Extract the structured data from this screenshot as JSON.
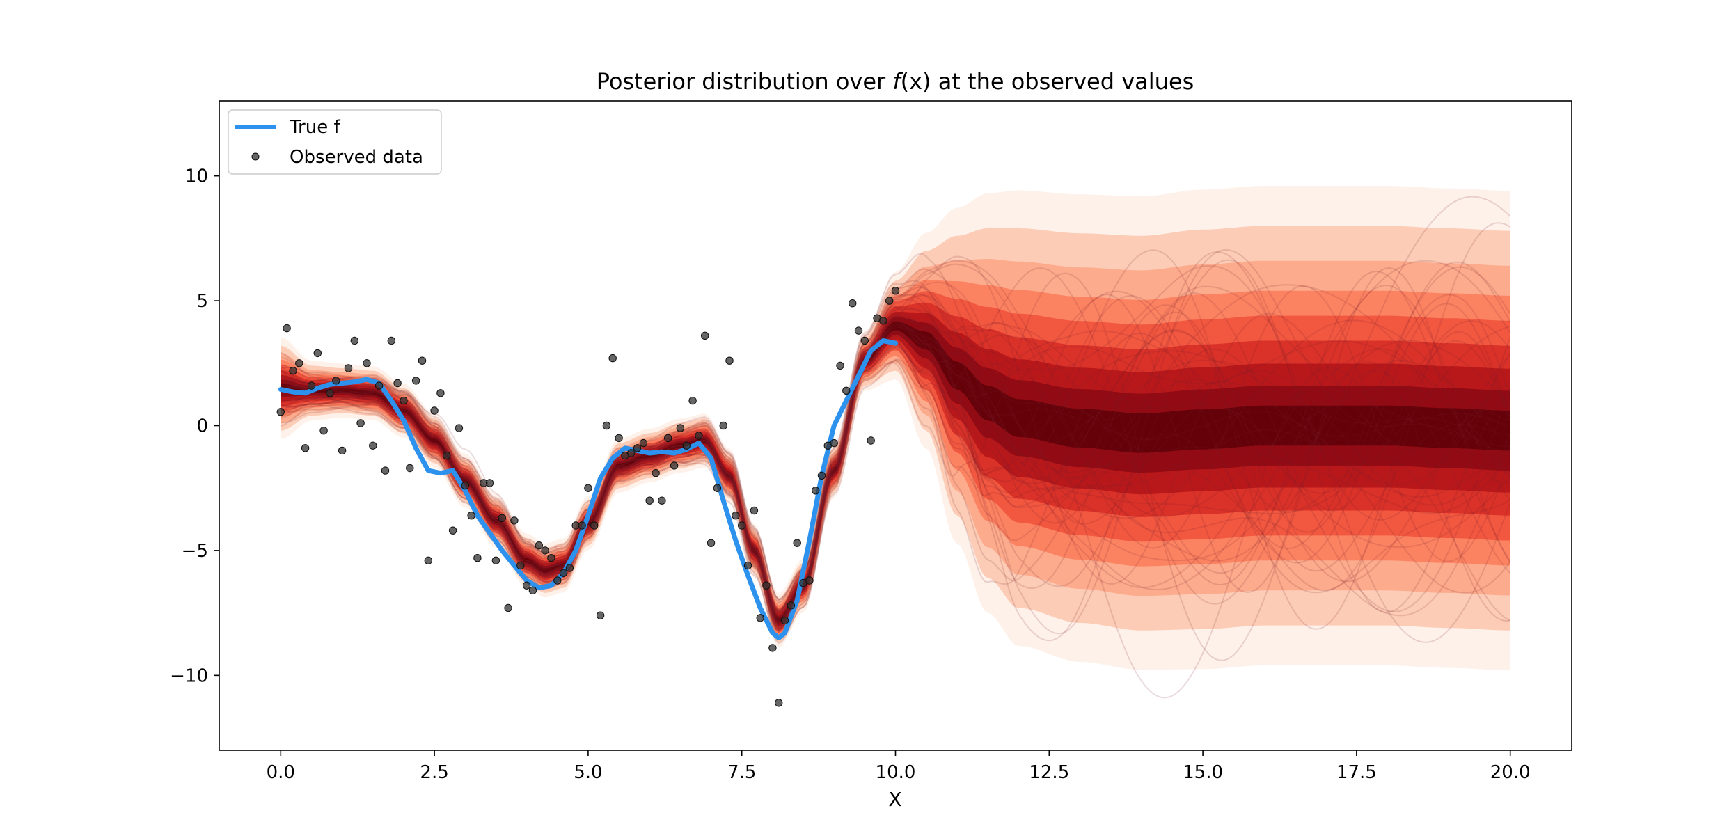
{
  "chart_data": {
    "type": "line",
    "title_prefix": "Posterior distribution over ",
    "title_math": "f",
    "title_arg": "(x)",
    "title_suffix": " at the observed values",
    "xlabel": "X",
    "ylabel": "",
    "xlim": [
      -1,
      21
    ],
    "ylim": [
      -13,
      13
    ],
    "x_ticks": [
      0.0,
      2.5,
      5.0,
      7.5,
      10.0,
      12.5,
      15.0,
      17.5,
      20.0
    ],
    "x_tick_labels": [
      "0.0",
      "2.5",
      "5.0",
      "7.5",
      "10.0",
      "12.5",
      "15.0",
      "17.5",
      "20.0"
    ],
    "y_ticks": [
      -10,
      -5,
      0,
      5,
      10
    ],
    "y_tick_labels": [
      "−10",
      "−5",
      "0",
      "5",
      "10"
    ],
    "grid": false,
    "legend_position": "top-left",
    "legend": [
      {
        "label": "True f",
        "kind": "line",
        "color": "#2d91ee"
      },
      {
        "label": "Observed data",
        "kind": "marker",
        "color": "#333333"
      }
    ],
    "posterior": {
      "color_dark": "#67000d",
      "color_light": "#fee0d2",
      "x": [
        0,
        0.5,
        1,
        1.5,
        2,
        2.5,
        3,
        3.5,
        4,
        4.3,
        4.6,
        5,
        5.5,
        6,
        6.5,
        6.9,
        7.3,
        7.7,
        8.1,
        8.5,
        9,
        9.5,
        10,
        10.5,
        11,
        11.5,
        12,
        13,
        14,
        15,
        16,
        17,
        18,
        19,
        20
      ],
      "mean": [
        1.5,
        1.4,
        1.4,
        1.3,
        0.6,
        -0.6,
        -2.2,
        -3.8,
        -5.4,
        -5.8,
        -5.6,
        -3.9,
        -1.6,
        -1.2,
        -0.8,
        -0.6,
        -2.0,
        -5.0,
        -7.8,
        -6.4,
        -1.8,
        2.6,
        4.0,
        3.4,
        2.0,
        0.9,
        0.3,
        -0.1,
        -0.3,
        -0.15,
        0.0,
        0.0,
        0.0,
        -0.1,
        -0.2
      ],
      "sd": [
        0.85,
        0.5,
        0.45,
        0.45,
        0.45,
        0.45,
        0.45,
        0.45,
        0.45,
        0.45,
        0.45,
        0.45,
        0.45,
        0.45,
        0.45,
        0.45,
        0.45,
        0.45,
        0.45,
        0.45,
        0.45,
        0.5,
        0.9,
        1.8,
        2.8,
        3.5,
        3.8,
        3.9,
        3.95,
        4.0,
        4.0,
        4.0,
        4.0,
        4.0,
        4.0
      ],
      "sample_count": 45
    },
    "series": [
      {
        "name": "True f",
        "color": "#2d91ee",
        "x": [
          0,
          0.2,
          0.4,
          0.6,
          0.8,
          1.0,
          1.2,
          1.4,
          1.6,
          1.8,
          2.0,
          2.2,
          2.4,
          2.6,
          2.8,
          3.0,
          3.2,
          3.4,
          3.6,
          3.8,
          4.0,
          4.2,
          4.4,
          4.6,
          4.8,
          5.0,
          5.2,
          5.4,
          5.6,
          5.8,
          6.0,
          6.2,
          6.4,
          6.6,
          6.8,
          7.0,
          7.2,
          7.4,
          7.6,
          7.8,
          8.0,
          8.1,
          8.2,
          8.4,
          8.6,
          8.8,
          9.0,
          9.2,
          9.4,
          9.6,
          9.8,
          10.0
        ],
        "y": [
          1.45,
          1.35,
          1.3,
          1.5,
          1.65,
          1.7,
          1.75,
          1.85,
          1.7,
          1.0,
          0.2,
          -0.9,
          -1.8,
          -1.9,
          -1.8,
          -2.6,
          -3.6,
          -4.3,
          -5.0,
          -5.6,
          -6.2,
          -6.5,
          -6.4,
          -5.9,
          -5.0,
          -3.6,
          -2.1,
          -1.3,
          -0.9,
          -1.0,
          -1.1,
          -1.05,
          -1.1,
          -0.95,
          -0.7,
          -1.3,
          -3.0,
          -4.6,
          -6.0,
          -7.3,
          -8.3,
          -8.5,
          -8.3,
          -7.0,
          -4.6,
          -2.0,
          0.0,
          1.0,
          2.0,
          3.0,
          3.4,
          3.3
        ]
      }
    ],
    "observed": {
      "name": "Observed data",
      "color": "#333333",
      "points": [
        [
          0.0,
          0.55
        ],
        [
          0.1,
          3.9
        ],
        [
          0.2,
          2.2
        ],
        [
          0.3,
          2.5
        ],
        [
          0.4,
          -0.9
        ],
        [
          0.5,
          1.6
        ],
        [
          0.6,
          2.9
        ],
        [
          0.7,
          -0.2
        ],
        [
          0.8,
          1.3
        ],
        [
          0.9,
          1.8
        ],
        [
          1.0,
          -1.0
        ],
        [
          1.1,
          2.3
        ],
        [
          1.2,
          3.4
        ],
        [
          1.3,
          0.1
        ],
        [
          1.4,
          2.5
        ],
        [
          1.5,
          -0.8
        ],
        [
          1.6,
          1.6
        ],
        [
          1.7,
          -1.8
        ],
        [
          1.8,
          3.4
        ],
        [
          1.9,
          1.7
        ],
        [
          2.0,
          1.0
        ],
        [
          2.1,
          -1.7
        ],
        [
          2.2,
          1.8
        ],
        [
          2.3,
          2.6
        ],
        [
          2.4,
          -5.4
        ],
        [
          2.5,
          0.6
        ],
        [
          2.6,
          1.3
        ],
        [
          2.7,
          -1.2
        ],
        [
          2.8,
          -4.2
        ],
        [
          2.9,
          -0.1
        ],
        [
          3.0,
          -2.4
        ],
        [
          3.1,
          -3.6
        ],
        [
          3.2,
          -5.3
        ],
        [
          3.3,
          -2.3
        ],
        [
          3.4,
          -2.3
        ],
        [
          3.5,
          -5.4
        ],
        [
          3.6,
          -3.7
        ],
        [
          3.7,
          -7.3
        ],
        [
          3.8,
          -3.8
        ],
        [
          3.9,
          -5.6
        ],
        [
          4.0,
          -6.4
        ],
        [
          4.1,
          -6.6
        ],
        [
          4.2,
          -4.8
        ],
        [
          4.3,
          -5.0
        ],
        [
          4.4,
          -5.3
        ],
        [
          4.5,
          -6.2
        ],
        [
          4.6,
          -5.9
        ],
        [
          4.7,
          -5.7
        ],
        [
          4.8,
          -4.0
        ],
        [
          4.9,
          -4.0
        ],
        [
          5.0,
          -2.5
        ],
        [
          5.1,
          -4.0
        ],
        [
          5.2,
          -7.6
        ],
        [
          5.3,
          -0.0
        ],
        [
          5.4,
          2.7
        ],
        [
          5.5,
          -0.5
        ],
        [
          5.6,
          -1.2
        ],
        [
          5.7,
          -1.1
        ],
        [
          5.8,
          -0.9
        ],
        [
          5.9,
          -0.7
        ],
        [
          6.0,
          -3.0
        ],
        [
          6.1,
          -1.9
        ],
        [
          6.2,
          -3.0
        ],
        [
          6.3,
          -0.5
        ],
        [
          6.4,
          -1.6
        ],
        [
          6.5,
          -0.1
        ],
        [
          6.6,
          -0.8
        ],
        [
          6.7,
          1.0
        ],
        [
          6.8,
          -0.4
        ],
        [
          6.9,
          3.6
        ],
        [
          7.0,
          -4.7
        ],
        [
          7.1,
          -2.5
        ],
        [
          7.2,
          0.0
        ],
        [
          7.3,
          2.6
        ],
        [
          7.4,
          -3.6
        ],
        [
          7.5,
          -4.0
        ],
        [
          7.6,
          -5.6
        ],
        [
          7.7,
          -3.4
        ],
        [
          7.8,
          -7.7
        ],
        [
          7.9,
          -6.4
        ],
        [
          8.0,
          -8.9
        ],
        [
          8.1,
          -11.1
        ],
        [
          8.2,
          -7.8
        ],
        [
          8.3,
          -7.2
        ],
        [
          8.4,
          -4.7
        ],
        [
          8.5,
          -6.3
        ],
        [
          8.6,
          -6.2
        ],
        [
          8.7,
          -2.6
        ],
        [
          8.8,
          -2.0
        ],
        [
          8.9,
          -0.8
        ],
        [
          9.0,
          -0.7
        ],
        [
          9.1,
          2.4
        ],
        [
          9.2,
          1.4
        ],
        [
          9.3,
          4.9
        ],
        [
          9.4,
          3.8
        ],
        [
          9.5,
          3.4
        ],
        [
          9.6,
          -0.6
        ],
        [
          9.7,
          4.3
        ],
        [
          9.8,
          4.2
        ],
        [
          9.9,
          5.0
        ],
        [
          10.0,
          5.4
        ]
      ]
    }
  }
}
